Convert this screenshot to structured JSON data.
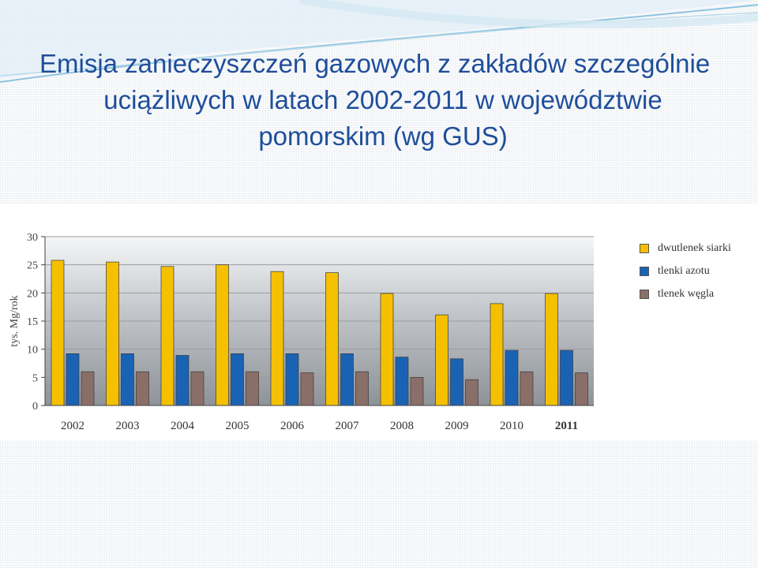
{
  "slide": {
    "title_lines": [
      "Emisja zanieczyszczeń gazowych z zakładów szczególnie",
      "uciążliwych w latach 2002-2011 w województwie",
      "pomorskim (wg GUS)"
    ]
  },
  "chart_data": {
    "type": "bar",
    "title": "",
    "xlabel": "",
    "ylabel": "tys. Mg/rok",
    "categories": [
      "2002",
      "2003",
      "2004",
      "2005",
      "2006",
      "2007",
      "2008",
      "2009",
      "2010",
      "2011"
    ],
    "bold_categories": [
      "2011"
    ],
    "series": [
      {
        "name": "dwutlenek siarki",
        "color": "#f5c000",
        "values": [
          25.8,
          25.5,
          24.7,
          25.0,
          23.8,
          23.6,
          19.9,
          16.1,
          18.1,
          19.9
        ]
      },
      {
        "name": "tlenki azotu",
        "color": "#1a63b4",
        "values": [
          9.2,
          9.2,
          8.9,
          9.2,
          9.2,
          9.2,
          8.6,
          8.3,
          9.8,
          9.8
        ]
      },
      {
        "name": "tlenek węgla",
        "color": "#8a6e68",
        "values": [
          6.0,
          6.0,
          6.0,
          6.0,
          5.8,
          6.0,
          5.0,
          4.6,
          6.0,
          5.8
        ]
      }
    ],
    "ylim": [
      0,
      30
    ],
    "yticks": [
      0,
      5,
      10,
      15,
      20,
      25,
      30
    ],
    "grid": true,
    "legend_position": "right"
  }
}
